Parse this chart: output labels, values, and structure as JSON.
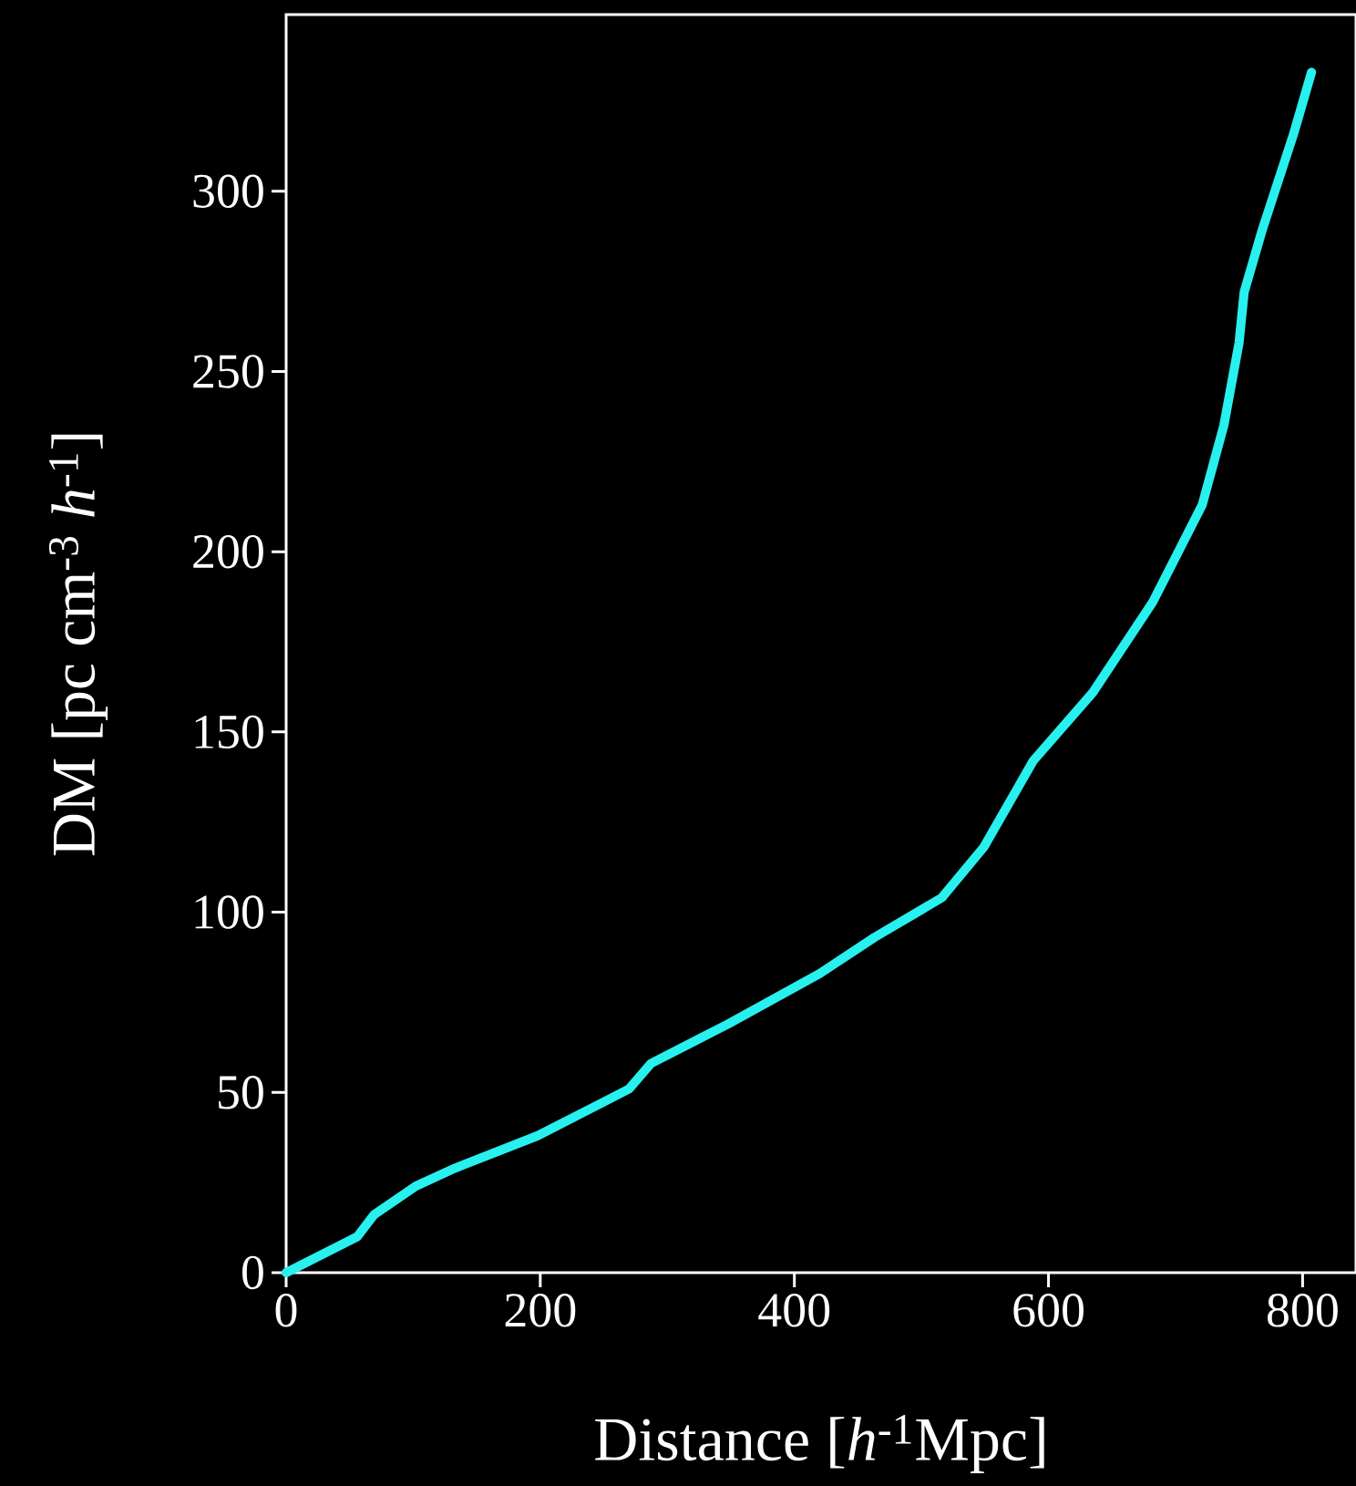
{
  "chart_data": {
    "type": "line",
    "xlabel": "Distance [*h*$^{-1}$Mpc]",
    "ylabel": "DM [pc cm$^{-3}$ *h*$^{-1}$]",
    "x": [
      0,
      56,
      69,
      102,
      133,
      198,
      248,
      270,
      287,
      348,
      420,
      463,
      516,
      549,
      588,
      635,
      682,
      721,
      738,
      750,
      754,
      768,
      793,
      807
    ],
    "series": [
      {
        "color": "#28f0ee",
        "values": [
          0,
          10,
          16,
          24,
          29,
          38,
          47,
          51,
          58,
          69,
          83,
          93,
          104,
          118,
          142,
          161,
          186,
          213,
          235,
          258,
          272,
          289,
          316,
          333
        ]
      }
    ],
    "xlim": [
      0,
      842
    ],
    "ylim": [
      0,
      349
    ],
    "xticks": [
      0,
      200,
      400,
      600,
      800
    ],
    "yticks": [
      0,
      50,
      100,
      150,
      200,
      250,
      300
    ],
    "grid": false,
    "marker": "none",
    "line_style": "solid"
  }
}
